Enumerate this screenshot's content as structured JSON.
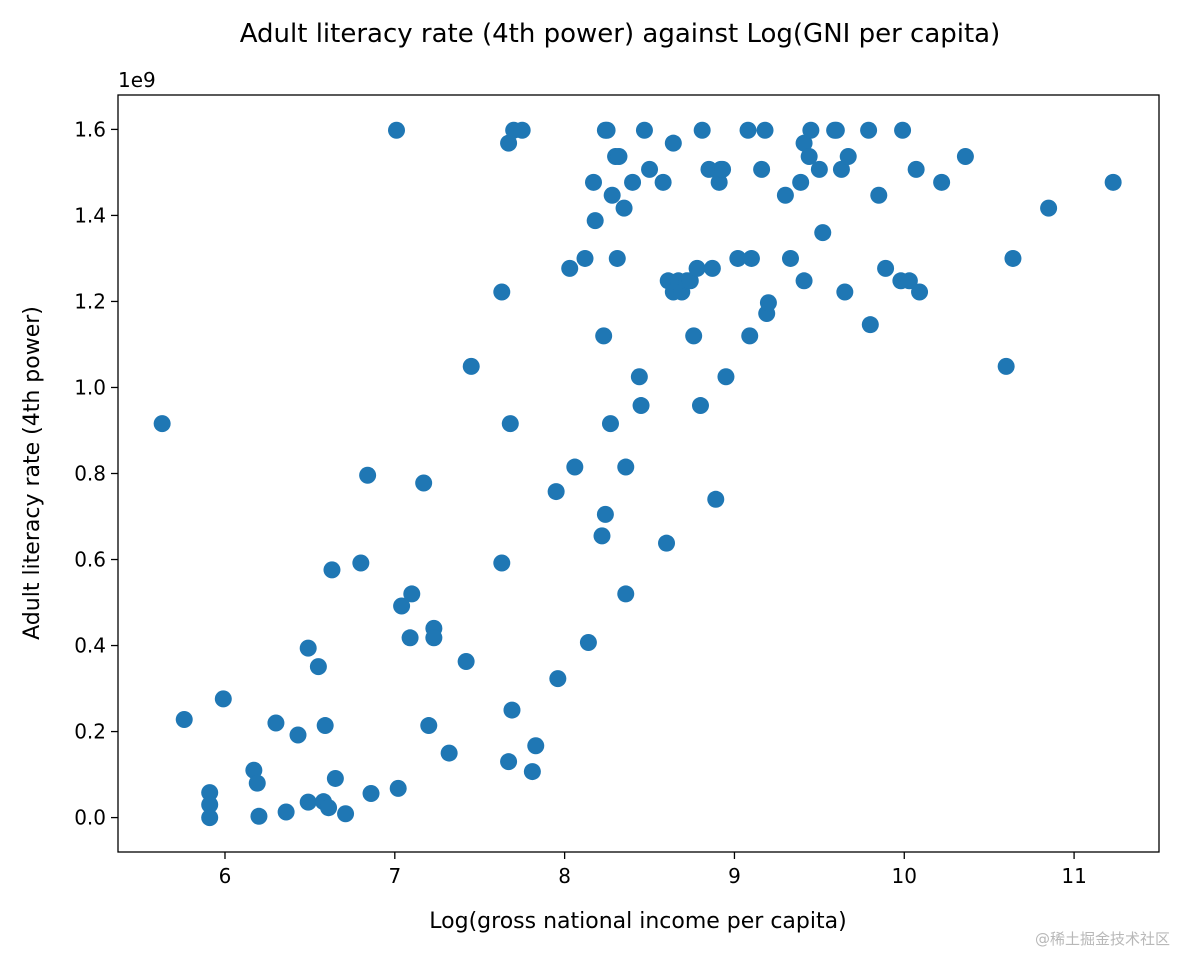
{
  "chart_data": {
    "type": "scatter",
    "title": "Adult literacy rate (4th power) against Log(GNI per capita)",
    "xlabel": "Log(gross national income per capita)",
    "ylabel": "Adult literacy rate (4th power)",
    "y_offset_label": "1e9",
    "xlim": [
      5.37,
      11.5
    ],
    "ylim": [
      -0.08,
      1.68
    ],
    "xticks": [
      "6",
      "7",
      "8",
      "9",
      "10",
      "11"
    ],
    "yticks": [
      "0.0",
      "0.2",
      "0.4",
      "0.6",
      "0.8",
      "1.0",
      "1.2",
      "1.4",
      "1.6"
    ],
    "grid": false,
    "color": "#1f77b4",
    "series": [
      {
        "x": [
          5.63,
          5.76,
          5.91,
          5.91,
          5.91,
          5.99,
          6.17,
          6.19,
          6.2,
          6.3,
          6.36,
          6.43,
          6.49,
          6.49,
          6.55,
          6.58,
          6.59,
          6.61,
          6.63,
          6.65,
          6.71,
          6.8,
          6.84,
          6.86,
          7.01,
          7.02,
          7.04,
          7.09,
          7.1,
          7.17,
          7.2,
          7.23,
          7.23,
          7.32,
          7.42,
          7.45,
          7.63,
          7.63,
          7.67,
          7.67,
          7.68,
          7.69,
          7.7,
          7.75,
          7.81,
          7.83,
          7.95,
          7.96,
          8.03,
          8.06,
          8.12,
          8.14,
          8.17,
          8.18,
          8.22,
          8.23,
          8.24,
          8.24,
          8.25,
          8.27,
          8.28,
          8.3,
          8.31,
          8.32,
          8.35,
          8.36,
          8.36,
          8.4,
          8.44,
          8.45,
          8.47,
          8.5,
          8.58,
          8.6,
          8.61,
          8.64,
          8.64,
          8.67,
          8.69,
          8.72,
          8.74,
          8.76,
          8.78,
          8.8,
          8.81,
          8.85,
          8.87,
          8.89,
          8.91,
          8.92,
          8.93,
          8.95,
          9.02,
          9.08,
          9.09,
          9.1,
          9.16,
          9.18,
          9.19,
          9.2,
          9.3,
          9.33,
          9.39,
          9.41,
          9.41,
          9.44,
          9.45,
          9.5,
          9.52,
          9.59,
          9.6,
          9.63,
          9.65,
          9.67,
          9.79,
          9.8,
          9.85,
          9.89,
          9.98,
          9.99,
          10.03,
          10.07,
          10.09,
          10.22,
          10.36,
          10.6,
          10.64,
          10.85,
          11.23
        ],
        "y": [
          0.916,
          0.228,
          0.058,
          0.03,
          0.0,
          0.276,
          0.11,
          0.08,
          0.003,
          0.22,
          0.013,
          0.192,
          0.036,
          0.394,
          0.351,
          0.037,
          0.214,
          0.023,
          0.576,
          0.091,
          0.009,
          0.592,
          0.796,
          0.056,
          1.598,
          0.068,
          0.492,
          0.418,
          0.52,
          0.778,
          0.214,
          0.44,
          0.418,
          0.15,
          0.363,
          1.049,
          1.222,
          0.592,
          1.568,
          0.13,
          0.916,
          0.25,
          1.598,
          1.598,
          0.107,
          0.167,
          0.758,
          0.323,
          1.277,
          0.815,
          1.3,
          0.407,
          1.477,
          1.388,
          0.655,
          1.12,
          0.705,
          1.598,
          1.598,
          0.916,
          1.447,
          1.537,
          1.3,
          1.537,
          1.417,
          0.815,
          0.52,
          1.477,
          1.025,
          0.958,
          1.598,
          1.507,
          1.477,
          0.638,
          1.248,
          1.568,
          1.222,
          1.248,
          1.222,
          1.248,
          1.248,
          1.12,
          1.277,
          0.958,
          1.598,
          1.507,
          1.277,
          0.74,
          1.477,
          1.507,
          1.507,
          1.025,
          1.3,
          1.598,
          1.12,
          1.3,
          1.507,
          1.598,
          1.172,
          1.197,
          1.447,
          1.3,
          1.477,
          1.248,
          1.568,
          1.537,
          1.598,
          1.507,
          1.36,
          1.598,
          1.598,
          1.507,
          1.222,
          1.537,
          1.598,
          1.146,
          1.447,
          1.277,
          1.248,
          1.598,
          1.248,
          1.507,
          1.222,
          1.477,
          1.537,
          1.049,
          1.3,
          1.417,
          1.477
        ]
      }
    ]
  },
  "watermark": "@稀土掘金技术社区"
}
